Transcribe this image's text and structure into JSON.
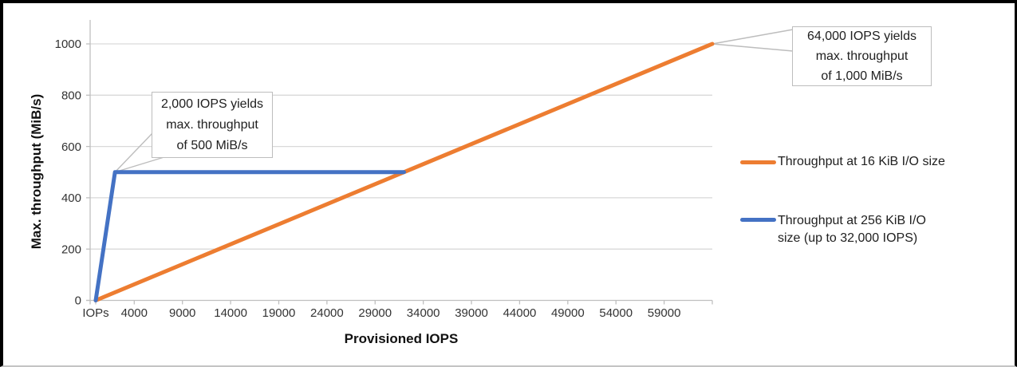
{
  "chart_data": {
    "type": "line",
    "title": "",
    "xlabel": "Provisioned IOPS",
    "ylabel": "Max. throughput (MiB/s)",
    "xlim": [
      0,
      64000
    ],
    "ylim": [
      0,
      1000
    ],
    "grid": "horizontal",
    "legend_position": "right",
    "x_tick_labels": [
      "IOPs",
      "4000",
      "9000",
      "14000",
      "19000",
      "24000",
      "29000",
      "34000",
      "39000",
      "44000",
      "49000",
      "54000",
      "59000"
    ],
    "x_tick_values": [
      0,
      4000,
      9000,
      14000,
      19000,
      24000,
      29000,
      34000,
      39000,
      44000,
      49000,
      54000,
      59000
    ],
    "y_ticks": [
      0,
      200,
      400,
      600,
      800,
      1000
    ],
    "series": [
      {
        "name": "Throughput at 16 KiB I/O size",
        "color": "#ED7D31",
        "points": [
          [
            0,
            0
          ],
          [
            64000,
            1000
          ]
        ]
      },
      {
        "name": "Throughput at 256 KiB I/O size (up to 32,000 IOPS)",
        "color": "#4472C4",
        "points": [
          [
            0,
            0
          ],
          [
            2000,
            500
          ],
          [
            32000,
            500
          ]
        ]
      }
    ],
    "annotations": [
      {
        "text_lines": [
          "2,000 IOPS yields",
          "max. throughput",
          "of 500 MiB/s"
        ],
        "anchor": [
          2000,
          500
        ]
      },
      {
        "text_lines": [
          "64,000 IOPS yields",
          "max. throughput",
          "of 1,000 MiB/s"
        ],
        "anchor": [
          64000,
          1000
        ]
      }
    ]
  },
  "colors": {
    "orange": "#ED7D31",
    "blue": "#4472C4",
    "grid": "#D9D9D9",
    "axis": "#BFBFBF",
    "leader": "#BDBDBD",
    "tick_text": "#333333"
  }
}
